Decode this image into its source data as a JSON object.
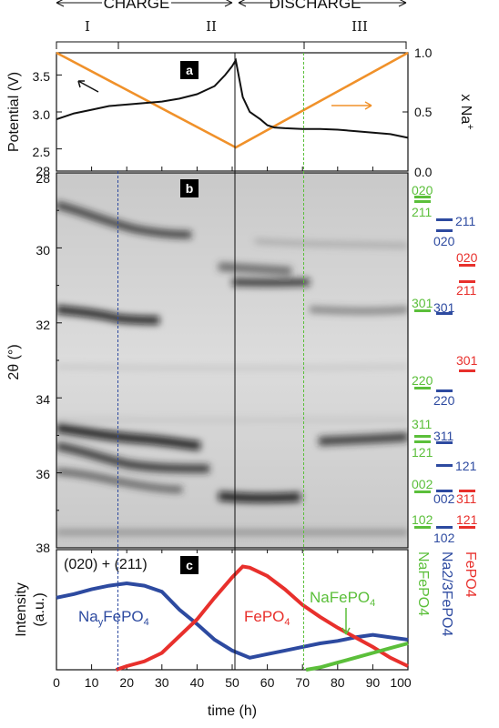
{
  "colors": {
    "orange": "#f0912a",
    "red": "#e8302c",
    "blue": "#2d4aa0",
    "green": "#5bbf3a",
    "black": "#111111"
  },
  "header": {
    "charge": "CHARGE",
    "discharge": "DISCHARGE",
    "regions": [
      "I",
      "II",
      "III"
    ]
  },
  "panel_a": {
    "badge": "a",
    "ylabel": "Potential (V)",
    "ylabel_right": "x Na",
    "ylabel_right_sup": "+",
    "yticks": [
      "3.5",
      "3.0",
      "2.5"
    ],
    "yticks_right": [
      "1.0",
      "0.5",
      "0.0"
    ]
  },
  "panel_b": {
    "badge": "b",
    "ylabel": "2θ (°)",
    "yticks": [
      "28",
      "30",
      "32",
      "34",
      "36",
      "38"
    ],
    "reflections": {
      "green": [
        "020",
        "211",
        "301",
        "220",
        "311",
        "121",
        "002",
        "102"
      ],
      "blue": [
        "211",
        "020",
        "301",
        "220",
        "311",
        "121",
        "002",
        "102"
      ],
      "red": [
        "020",
        "211",
        "301",
        "311",
        "121"
      ]
    }
  },
  "panel_c": {
    "badge": "c",
    "title": "(020) + (211)",
    "ylabel": "Intensity",
    "ylabel_unit": "(a.u.)",
    "labels": {
      "nay": "Na",
      "nay_sub": "y",
      "nay_rest": "FePO",
      "nay_sub2": "4",
      "fepo": "FePO",
      "fepo_sub": "4",
      "nafepo": "NaFePO",
      "nafepo_sub": "4"
    },
    "legend": {
      "red": "FePO4",
      "blue": "Na2/3FePO4",
      "green": "NaFePO4"
    },
    "xlabel": "time (h)",
    "xticks": [
      "0",
      "10",
      "20",
      "30",
      "40",
      "50",
      "60",
      "70",
      "80",
      "90",
      "100"
    ]
  },
  "chart_data": [
    {
      "type": "line",
      "title": "",
      "xlabel": "time (h)",
      "ylabel": "Potential (V)",
      "xlim": [
        0,
        100
      ],
      "ylim": [
        2.2,
        3.8
      ],
      "y2label": "x Na+",
      "y2lim": [
        0,
        1
      ],
      "series": [
        {
          "name": "Potential (V)",
          "x": [
            0,
            5,
            10,
            15,
            20,
            25,
            30,
            35,
            40,
            45,
            48,
            50,
            51,
            53,
            55,
            58,
            60,
            62,
            65,
            70,
            75,
            80,
            85,
            90,
            95,
            100
          ],
          "y": [
            2.9,
            2.98,
            3.03,
            3.08,
            3.1,
            3.12,
            3.14,
            3.18,
            3.24,
            3.35,
            3.5,
            3.62,
            3.7,
            3.2,
            3.0,
            2.9,
            2.82,
            2.79,
            2.78,
            2.77,
            2.77,
            2.76,
            2.74,
            2.72,
            2.7,
            2.65
          ]
        },
        {
          "name": "x Na+",
          "x": [
            0,
            51,
            100
          ],
          "y": [
            1.0,
            0.2,
            1.0
          ]
        }
      ]
    },
    {
      "type": "heatmap",
      "title": "",
      "xlabel": "time (h)",
      "ylabel": "2θ (°)",
      "xlim": [
        0,
        100
      ],
      "ylim": [
        28,
        38
      ]
    },
    {
      "type": "line",
      "title": "(020) + (211)",
      "xlabel": "time (h)",
      "ylabel": "Intensity",
      "xlim": [
        0,
        100
      ],
      "ylim": [
        0,
        1
      ],
      "series": [
        {
          "name": "NayFePO4",
          "x": [
            0,
            5,
            10,
            15,
            20,
            25,
            30,
            35,
            40,
            45,
            50,
            55,
            60,
            65,
            70,
            75,
            80,
            85,
            90,
            95,
            100
          ],
          "y": [
            0.6,
            0.63,
            0.67,
            0.7,
            0.72,
            0.7,
            0.65,
            0.5,
            0.38,
            0.25,
            0.16,
            0.1,
            0.13,
            0.16,
            0.19,
            0.22,
            0.24,
            0.27,
            0.29,
            0.27,
            0.25
          ]
        },
        {
          "name": "FePO4",
          "x": [
            17,
            20,
            25,
            30,
            35,
            40,
            45,
            50,
            53,
            55,
            60,
            65,
            70,
            75,
            80,
            85,
            90,
            95,
            100
          ],
          "y": [
            0.0,
            0.03,
            0.07,
            0.14,
            0.28,
            0.42,
            0.6,
            0.77,
            0.86,
            0.85,
            0.78,
            0.67,
            0.54,
            0.44,
            0.35,
            0.27,
            0.19,
            0.1,
            0.03
          ]
        },
        {
          "name": "NaFePO4",
          "x": [
            71,
            75,
            80,
            85,
            90,
            95,
            100
          ],
          "y": [
            0.0,
            0.02,
            0.06,
            0.1,
            0.14,
            0.18,
            0.22
          ]
        }
      ]
    }
  ]
}
